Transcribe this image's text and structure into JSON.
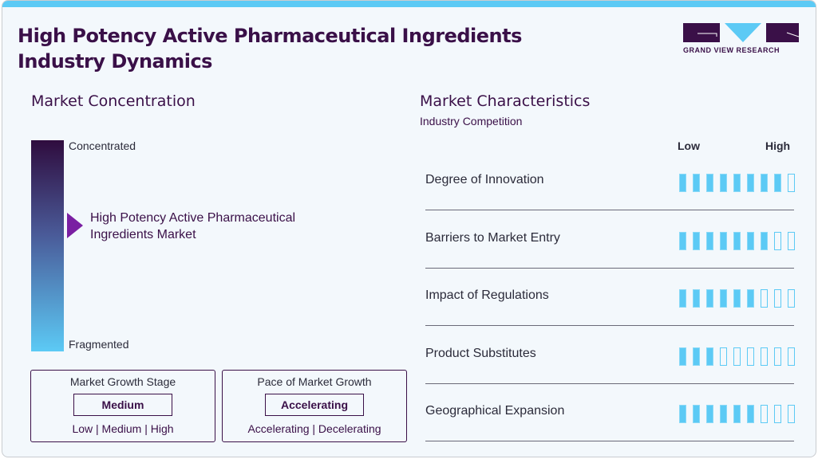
{
  "title_line1": "High Potency Active Pharmaceutical Ingredients",
  "title_line2": "Industry Dynamics",
  "logo": {
    "text": "GRAND VIEW RESEARCH",
    "colors": {
      "dark": "#3a1048",
      "accent": "#5ccaf5"
    }
  },
  "concentration": {
    "heading": "Market Concentration",
    "top_label": "Concentrated",
    "bottom_label": "Fragmented",
    "market_line1": "High Potency Active Pharmaceutical",
    "market_line2": "Ingredients Market"
  },
  "growth_stage": {
    "title": "Market Growth Stage",
    "value": "Medium",
    "options": "Low | Medium | High"
  },
  "pace": {
    "title": "Pace of Market Growth",
    "value": "Accelerating",
    "options": "Accelerating | Decelerating"
  },
  "characteristics": {
    "heading": "Market Characteristics",
    "subheading": "Industry Competition",
    "low": "Low",
    "high": "High",
    "max": 9,
    "items": [
      {
        "label": "Degree of Innovation",
        "score": 8
      },
      {
        "label": "Barriers to Market Entry",
        "score": 7
      },
      {
        "label": "Impact of Regulations",
        "score": 6
      },
      {
        "label": "Product Substitutes",
        "score": 3
      },
      {
        "label": "Geographical Expansion",
        "score": 6
      }
    ]
  }
}
